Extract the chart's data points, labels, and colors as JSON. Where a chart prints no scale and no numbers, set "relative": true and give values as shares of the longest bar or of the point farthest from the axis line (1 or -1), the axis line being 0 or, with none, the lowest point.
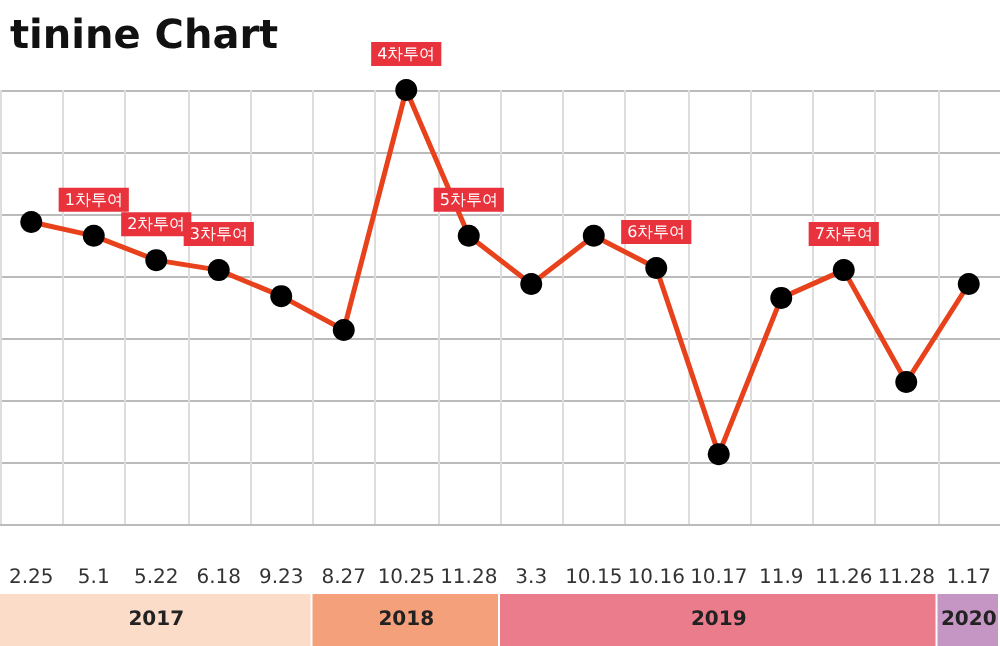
{
  "chart_data": {
    "type": "line",
    "title": "tinine Chart",
    "relative": true,
    "grid": true,
    "marker": "circle",
    "line_style": "solid",
    "categories": [
      "2.25",
      "5.1",
      "5.22",
      "6.18",
      "9.23",
      "8.27",
      "10.25",
      "11.28",
      "3.3",
      "10.15",
      "10.16",
      "10.17",
      "11.9",
      "11.26",
      "11.28",
      "1.17"
    ],
    "series": [
      {
        "color": "#e8421c",
        "values": [
          0.696,
          0.664,
          0.608,
          0.585,
          0.525,
          0.447,
          1,
          0.664,
          0.553,
          0.664,
          0.59,
          0.161,
          0.521,
          0.585,
          0.327,
          0.553
        ]
      }
    ],
    "annotations": [
      {
        "text": "1차투여",
        "x": "5.1",
        "y": 0.664
      },
      {
        "text": "2차투여",
        "x": "5.22",
        "y": 0.608
      },
      {
        "text": "3차투여",
        "x": "6.18",
        "y": 0.585
      },
      {
        "text": "4차투여",
        "x": "10.25",
        "y": 1
      },
      {
        "text": "5차투여",
        "x": "11.28",
        "y": 0.664
      },
      {
        "text": "6차투여",
        "x": "10.16",
        "y": 0.59
      },
      {
        "text": "7차투여",
        "x": "11.26",
        "y": 0.585
      },
      "2017",
      "2018",
      "2019",
      "2020"
    ]
  }
}
